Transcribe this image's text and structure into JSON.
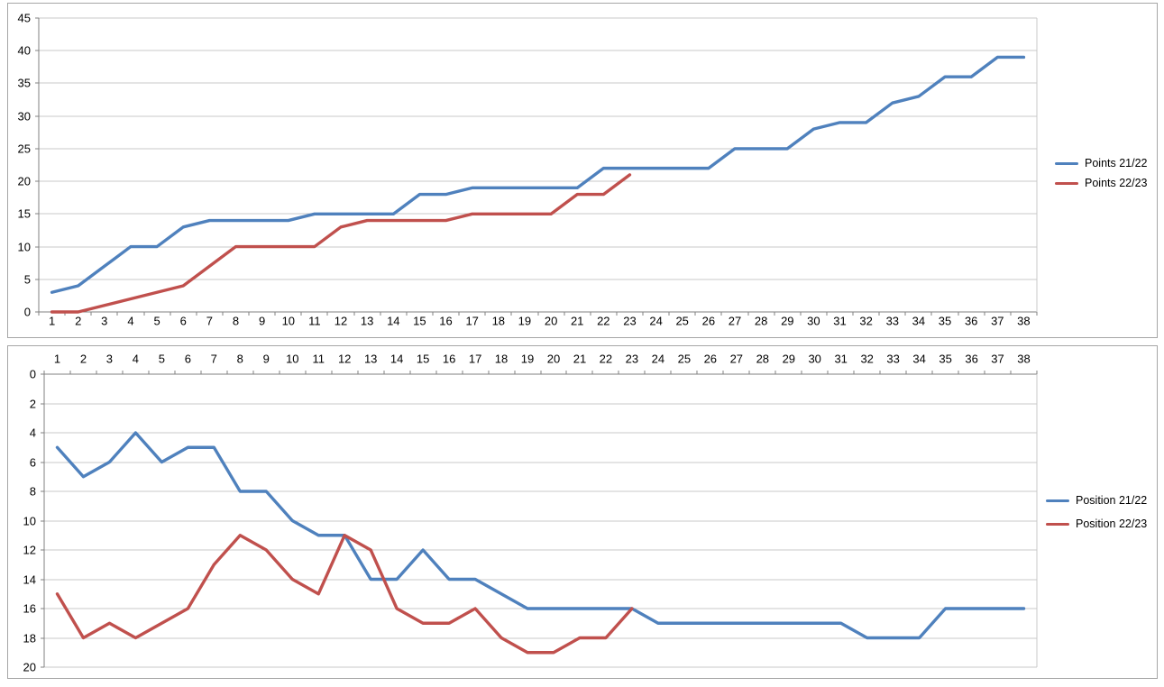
{
  "page": {
    "background": "#FFFFFF"
  },
  "colors": {
    "series_blue": "#4F81BD",
    "series_red": "#C0504D",
    "gridline": "#C8C8C8",
    "axis_line": "#808080",
    "tick_label": "#000000",
    "panel_border": "#A6A6A6",
    "panel_background": "#FFFFFF"
  },
  "chart_data": [
    {
      "id": "points",
      "type": "line",
      "title": "",
      "x": {
        "categories": [
          1,
          2,
          3,
          4,
          5,
          6,
          7,
          8,
          9,
          10,
          11,
          12,
          13,
          14,
          15,
          16,
          17,
          18,
          19,
          20,
          21,
          22,
          23,
          24,
          25,
          26,
          27,
          28,
          29,
          30,
          31,
          32,
          33,
          34,
          35,
          36,
          37,
          38
        ],
        "labels_position": "below-axis"
      },
      "y": {
        "min": 0,
        "max": 45,
        "step": 5,
        "reversed": false
      },
      "grid": true,
      "legend_position": "right",
      "series": [
        {
          "name": "Points 21/22",
          "color": "#4F81BD",
          "values": [
            3,
            4,
            7,
            10,
            10,
            13,
            14,
            14,
            14,
            14,
            15,
            15,
            15,
            15,
            18,
            18,
            19,
            19,
            19,
            19,
            19,
            22,
            22,
            22,
            22,
            22,
            25,
            25,
            25,
            28,
            29,
            29,
            32,
            33,
            36,
            36,
            39,
            39
          ]
        },
        {
          "name": "Points 22/23",
          "color": "#C0504D",
          "values": [
            0,
            0,
            1,
            2,
            3,
            4,
            7,
            10,
            10,
            10,
            10,
            13,
            14,
            14,
            14,
            14,
            15,
            15,
            15,
            15,
            18,
            18,
            21
          ]
        }
      ]
    },
    {
      "id": "position",
      "type": "line",
      "title": "",
      "x": {
        "categories": [
          1,
          2,
          3,
          4,
          5,
          6,
          7,
          8,
          9,
          10,
          11,
          12,
          13,
          14,
          15,
          16,
          17,
          18,
          19,
          20,
          21,
          22,
          23,
          24,
          25,
          26,
          27,
          28,
          29,
          30,
          31,
          32,
          33,
          34,
          35,
          36,
          37,
          38
        ],
        "labels_position": "above-axis"
      },
      "y": {
        "min": 0,
        "max": 20,
        "step": 2,
        "reversed": true
      },
      "grid": true,
      "legend_position": "right",
      "series": [
        {
          "name": "Position 21/22",
          "color": "#4F81BD",
          "values": [
            5,
            7,
            6,
            4,
            6,
            5,
            5,
            8,
            8,
            10,
            11,
            11,
            14,
            14,
            12,
            14,
            14,
            15,
            16,
            16,
            16,
            16,
            16,
            17,
            17,
            17,
            17,
            17,
            17,
            17,
            17,
            18,
            18,
            18,
            16,
            16,
            16,
            16
          ]
        },
        {
          "name": "Position 22/23",
          "color": "#C0504D",
          "values": [
            15,
            18,
            17,
            18,
            17,
            16,
            13,
            11,
            12,
            14,
            15,
            11,
            12,
            16,
            17,
            17,
            16,
            18,
            19,
            19,
            18,
            18,
            16
          ]
        }
      ]
    }
  ]
}
